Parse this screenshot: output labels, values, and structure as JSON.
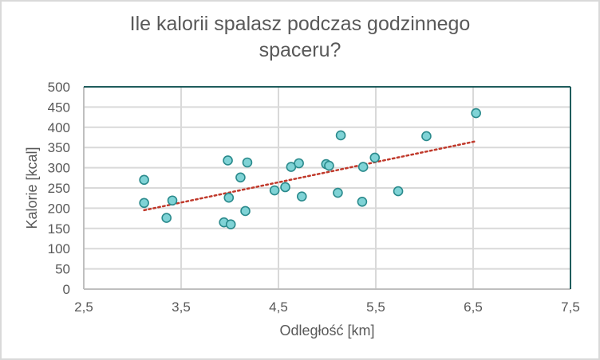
{
  "chart": {
    "title_line1": "Ile kalorii spalasz podczas godzinnego",
    "title_line2": "spaceru?",
    "xlabel": "Odległość [km]",
    "ylabel": "Kalorie [kcal]"
  },
  "colors": {
    "marker_fill": "#7fd3d6",
    "marker_stroke": "#2a8a8c",
    "trendline": "#c0392b",
    "gridline": "#d9d9d9",
    "plot_border_top_right": "#1f5c5c",
    "axis_text": "#595959"
  },
  "chart_data": {
    "type": "scatter",
    "title": "Ile kalorii spalasz podczas godzinnego spaceru?",
    "xlabel": "Odległość [km]",
    "ylabel": "Kalorie [kcal]",
    "xlim": [
      2.5,
      7.5
    ],
    "ylim": [
      0,
      500
    ],
    "x_ticks": [
      "2,5",
      "3,5",
      "4,5",
      "5,5",
      "6,5",
      "7,5"
    ],
    "y_ticks": [
      "0",
      "50",
      "100",
      "150",
      "200",
      "250",
      "300",
      "350",
      "400",
      "450",
      "500"
    ],
    "grid": true,
    "legend": "none",
    "series": [
      {
        "name": "Kalorie",
        "points": [
          [
            3.12,
            270
          ],
          [
            3.12,
            213
          ],
          [
            3.41,
            219
          ],
          [
            3.35,
            176
          ],
          [
            3.98,
            318
          ],
          [
            4.18,
            313
          ],
          [
            4.11,
            276
          ],
          [
            3.99,
            226
          ],
          [
            3.94,
            165
          ],
          [
            4.01,
            160
          ],
          [
            4.16,
            193
          ],
          [
            4.46,
            244
          ],
          [
            4.57,
            252
          ],
          [
            4.63,
            302
          ],
          [
            4.71,
            311
          ],
          [
            4.74,
            229
          ],
          [
            4.99,
            309
          ],
          [
            5.02,
            305
          ],
          [
            5.14,
            380
          ],
          [
            5.11,
            238
          ],
          [
            5.37,
            302
          ],
          [
            5.36,
            216
          ],
          [
            5.49,
            325
          ],
          [
            5.73,
            242
          ],
          [
            6.02,
            378
          ],
          [
            6.53,
            435
          ]
        ]
      }
    ],
    "trendline": {
      "type": "linear",
      "style": "dotted",
      "start": [
        3.12,
        195
      ],
      "end": [
        6.52,
        365
      ]
    }
  }
}
